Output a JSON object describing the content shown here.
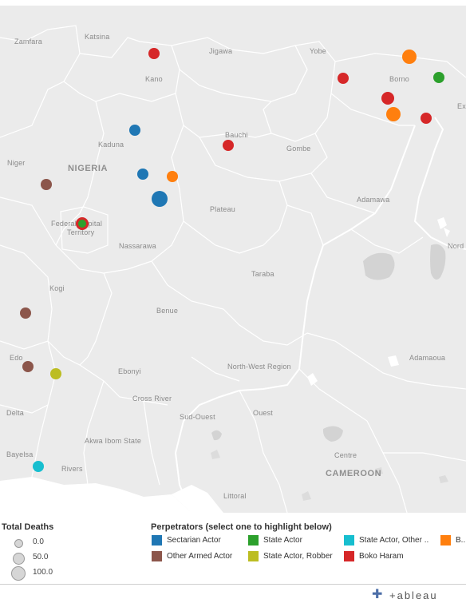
{
  "map": {
    "labels": {
      "zamfara": "Zamfara",
      "katsina": "Katsina",
      "jigawa": "Jigawa",
      "yobe": "Yobe",
      "borno": "Borno",
      "kano": "Kano",
      "ex": "Ex",
      "bauchi": "Bauchi",
      "kaduna": "Kaduna",
      "gombe": "Gombe",
      "niger": "Niger",
      "nigeria": "NIGERIA",
      "adamawa": "Adamawa",
      "fct": "Federal Capital",
      "territory": "Territory",
      "plateau": "Plateau",
      "nord": "Nord",
      "nassarawa": "Nassarawa",
      "taraba": "Taraba",
      "kogi": "Kogi",
      "benue": "Benue",
      "adamaoua": "Adamaoua",
      "edo": "Edo",
      "ebonyi": "Ebonyi",
      "north_west_region": "North-West Region",
      "cross_river": "Cross River",
      "delta": "Delta",
      "sud_ouest": "Sud-Ouest",
      "ouest": "Ouest",
      "akwa_ibom": "Akwa Ibom State",
      "bayelsa": "Bayelsa",
      "centre": "Centre",
      "rivers": "Rivers",
      "cameroon": "CAMEROON",
      "littoral": "Littoral"
    },
    "markers": [
      {
        "perpetrator": "Boko Haram",
        "deaths": 8
      },
      {
        "perpetrator": "B..",
        "deaths": 35
      },
      {
        "perpetrator": "Boko Haram",
        "deaths": 10
      },
      {
        "perpetrator": "State Actor",
        "deaths": 12
      },
      {
        "perpetrator": "Boko Haram",
        "deaths": 20
      },
      {
        "perpetrator": "B..",
        "deaths": 35
      },
      {
        "perpetrator": "Boko Haram",
        "deaths": 12
      },
      {
        "perpetrator": "Sectarian Actor",
        "deaths": 8
      },
      {
        "perpetrator": "Boko Haram",
        "deaths": 12
      },
      {
        "perpetrator": "Sectarian Actor",
        "deaths": 8
      },
      {
        "perpetrator": "B..",
        "deaths": 8
      },
      {
        "perpetrator": "Sectarian Actor",
        "deaths": 45
      },
      {
        "perpetrator": "Other Armed Actor",
        "deaths": 8
      },
      {
        "perpetrator": "Boko Haram",
        "deaths": 22
      },
      {
        "perpetrator": "State Actor",
        "deaths": 10
      },
      {
        "perpetrator": "Other Armed Actor",
        "deaths": 12
      },
      {
        "perpetrator": "Other Armed Actor",
        "deaths": 10
      },
      {
        "perpetrator": "State Actor, Robber",
        "deaths": 8
      },
      {
        "perpetrator": "State Actor, Other ..",
        "deaths": 10
      }
    ]
  },
  "legend": {
    "size_title": "Total Deaths",
    "sizes": [
      {
        "label": "0.0",
        "value": 0
      },
      {
        "label": "50.0",
        "value": 50
      },
      {
        "label": "100.0",
        "value": 100
      }
    ],
    "color_title": "Perpetrators (select one to highlight below)",
    "categories": [
      {
        "label": "Sectarian Actor",
        "color": "#1f77b4"
      },
      {
        "label": "State Actor",
        "color": "#2ca02c"
      },
      {
        "label": "State Actor, Other ..",
        "color": "#17becf"
      },
      {
        "label": "B..",
        "color": "#ff7f0e"
      },
      {
        "label": "Other Armed Actor",
        "color": "#8c564b"
      },
      {
        "label": "State Actor, Robber",
        "color": "#bcbd22"
      },
      {
        "label": "Boko Haram",
        "color": "#d62728"
      }
    ]
  },
  "footer": {
    "logo_text": "+ableau",
    "logo_icon": "tableau-cross-icon"
  }
}
